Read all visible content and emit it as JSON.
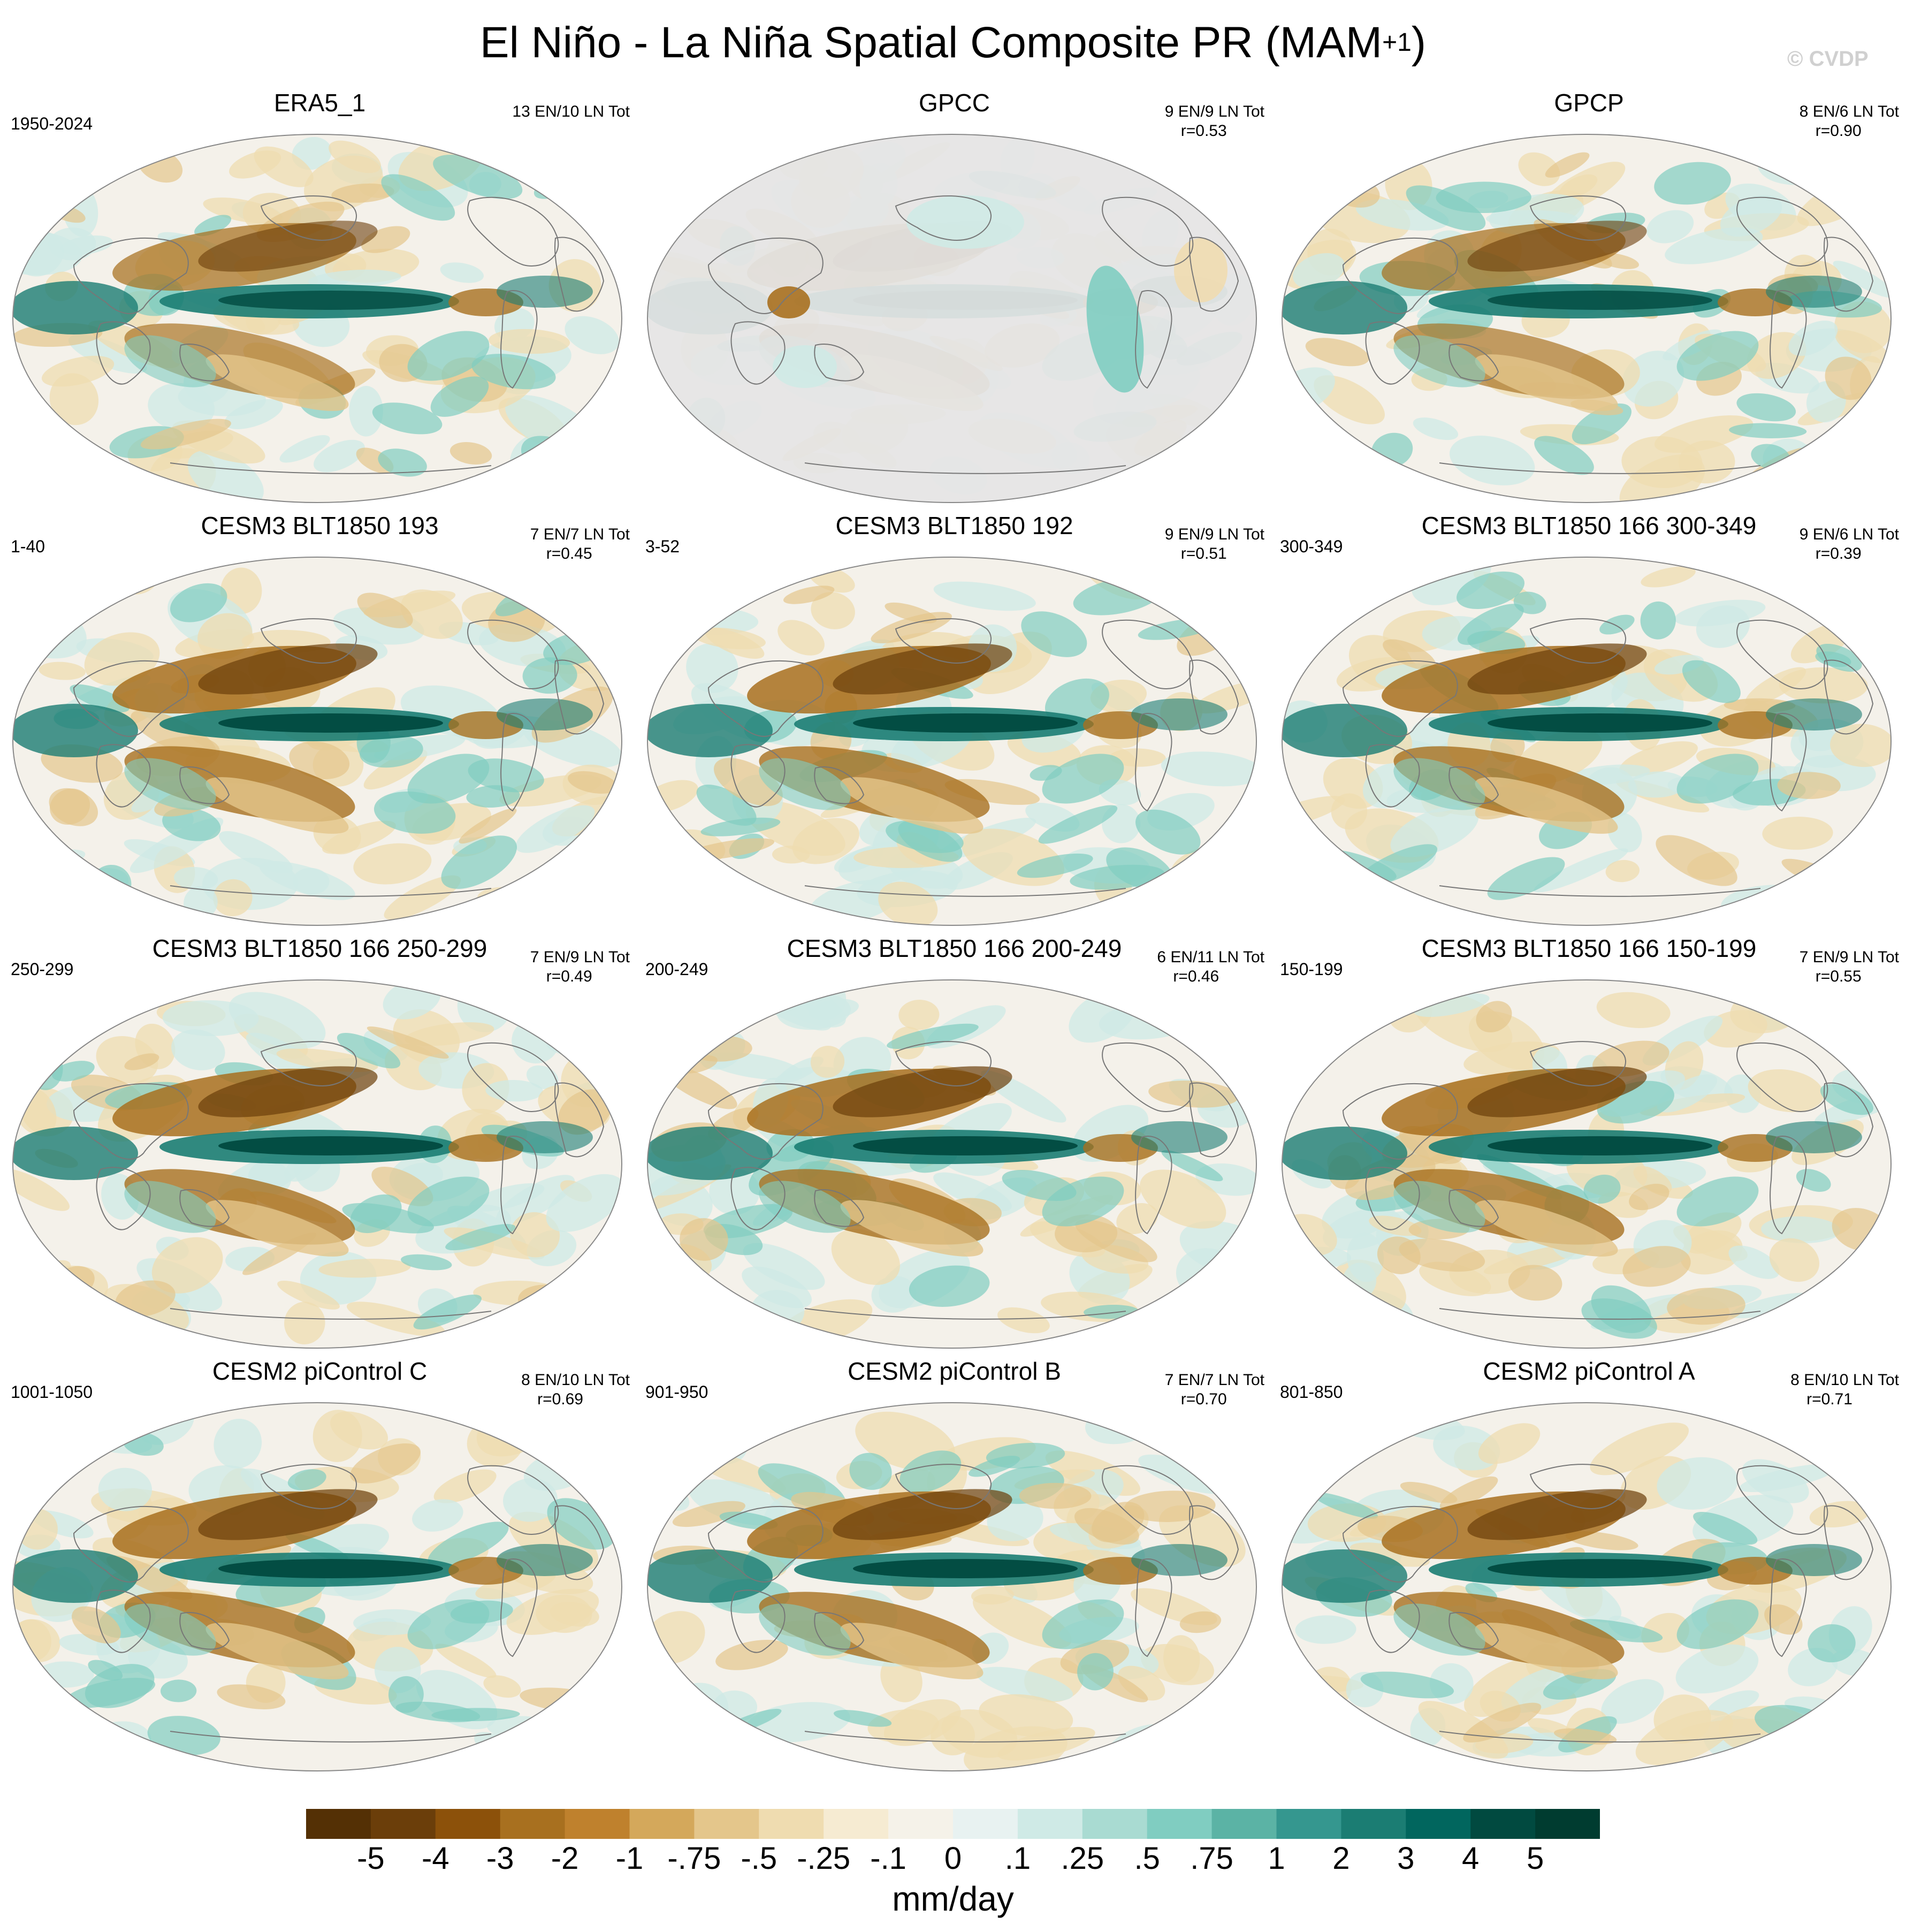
{
  "title": {
    "main": "El Niño - La Niña Spatial Composite PR (MAM",
    "sup": "+1",
    "close": ")"
  },
  "watermark": "© CVDP",
  "panels": [
    {
      "title": "ERA5_1",
      "left": "1950-2024",
      "right1": "13 EN/10 LN Tot",
      "right2": "",
      "variant": "obs"
    },
    {
      "title": "GPCC",
      "left": "",
      "right1": "9 EN/9 LN Tot",
      "right2": "r=0.53",
      "variant": "land"
    },
    {
      "title": "GPCP",
      "left": "",
      "right1": "8 EN/6 LN Tot",
      "right2": "r=0.90",
      "variant": "obs"
    },
    {
      "title": "CESM3 BLT1850 193",
      "left": "1-40",
      "right1": "7 EN/7 LN Tot",
      "right2": "r=0.45",
      "variant": "model"
    },
    {
      "title": "CESM3 BLT1850 192",
      "left": "3-52",
      "right1": "9 EN/9 LN Tot",
      "right2": "r=0.51",
      "variant": "model"
    },
    {
      "title": "CESM3 BLT1850 166 300-349",
      "left": "300-349",
      "right1": "9 EN/6 LN Tot",
      "right2": "r=0.39",
      "variant": "model"
    },
    {
      "title": "CESM3 BLT1850 166 250-299",
      "left": "250-299",
      "right1": "7 EN/9 LN Tot",
      "right2": "r=0.49",
      "variant": "model"
    },
    {
      "title": "CESM3 BLT1850 166 200-249",
      "left": "200-249",
      "right1": "6 EN/11 LN Tot",
      "right2": "r=0.46",
      "variant": "model"
    },
    {
      "title": "CESM3 BLT1850 166 150-199",
      "left": "150-199",
      "right1": "7 EN/9 LN Tot",
      "right2": "r=0.55",
      "variant": "model"
    },
    {
      "title": "CESM2 piControl C",
      "left": "1001-1050",
      "right1": "8 EN/10 LN Tot",
      "right2": "r=0.69",
      "variant": "model"
    },
    {
      "title": "CESM2 piControl B",
      "left": "901-950",
      "right1": "7 EN/7 LN Tot",
      "right2": "r=0.70",
      "variant": "model"
    },
    {
      "title": "CESM2 piControl A",
      "left": "801-850",
      "right1": "8 EN/10 LN Tot",
      "right2": "r=0.71",
      "variant": "model"
    }
  ],
  "colorbar": {
    "colors": [
      "#543005",
      "#6b3e0a",
      "#8c510a",
      "#a8701f",
      "#bf812d",
      "#d4a85b",
      "#e4c68b",
      "#efdcb0",
      "#f6ebd2",
      "#f5f2e9",
      "#e8f2f1",
      "#cfeae6",
      "#a9dbd2",
      "#80cdc1",
      "#5bb3a5",
      "#35978f",
      "#1b7d73",
      "#01665e",
      "#014a40",
      "#003c30"
    ],
    "ticks": [
      "-5",
      "-4",
      "-3",
      "-2",
      "-1",
      "-.75",
      "-.5",
      "-.25",
      "-.1",
      "0",
      ".1",
      ".25",
      ".5",
      ".75",
      "1",
      "2",
      "3",
      "4",
      "5"
    ],
    "units": "mm/day"
  },
  "palette": {
    "land_mask": "#e5e5e5",
    "ocean_bg": "#f4f1ea",
    "coast": "#777777"
  }
}
